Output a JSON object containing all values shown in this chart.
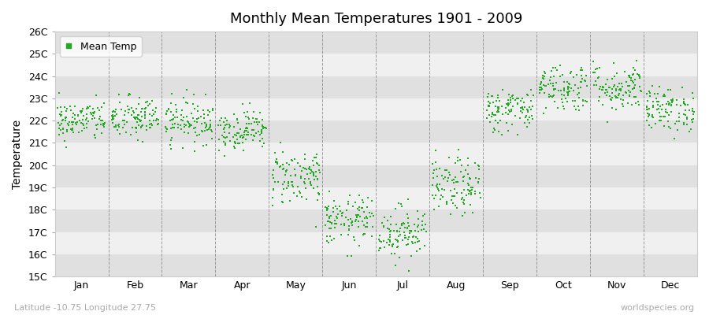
{
  "title": "Monthly Mean Temperatures 1901 - 2009",
  "ylabel": "Temperature",
  "subtitle": "Latitude -10.75 Longitude 27.75",
  "watermark": "worldspecies.org",
  "legend_label": "Mean Temp",
  "dot_color": "#22aa22",
  "bg_color": "#ffffff",
  "band_light": "#f0f0f0",
  "band_dark": "#e0e0e0",
  "ylim": [
    15,
    26
  ],
  "yticks": [
    15,
    16,
    17,
    18,
    19,
    20,
    21,
    22,
    23,
    24,
    25,
    26
  ],
  "months": [
    "Jan",
    "Feb",
    "Mar",
    "Apr",
    "May",
    "Jun",
    "Jul",
    "Aug",
    "Sep",
    "Oct",
    "Nov",
    "Dec"
  ],
  "mean_temps": [
    22.0,
    22.1,
    22.0,
    21.6,
    19.5,
    17.5,
    17.0,
    19.0,
    22.5,
    23.5,
    23.5,
    22.5
  ],
  "std_temps": [
    0.45,
    0.5,
    0.5,
    0.45,
    0.65,
    0.55,
    0.6,
    0.65,
    0.5,
    0.55,
    0.55,
    0.5
  ],
  "n_years": 109,
  "seed": 42
}
